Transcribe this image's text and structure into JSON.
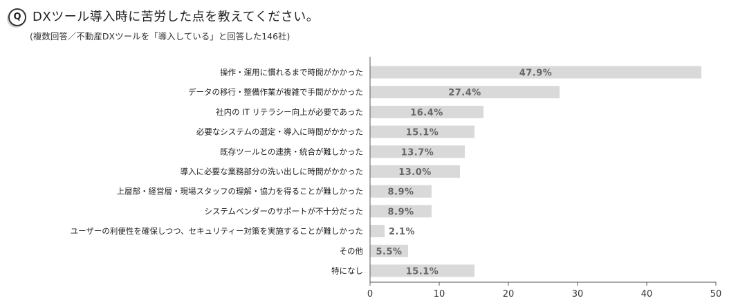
{
  "header": {
    "q_badge": "Q",
    "title": "DXツール導入時に苦労した点を教えてください。",
    "subtitle": "(複数回答／不動産DXツールを「導入している」と回答した146社)"
  },
  "chart_data": {
    "type": "bar",
    "orientation": "horizontal",
    "categories": [
      "操作・運用に慣れるまで時間がかかった",
      "データの移行・整備作業が複雑で手間がかかった",
      "社内の IT リテラシー向上が必要であった",
      "必要なシステムの選定・導入に時間がかかった",
      "既存ツールとの連携・統合が難しかった",
      "導入に必要な業務部分の洗い出しに時間がかかった",
      "上層部・経営層・現場スタッフの理解・協力を得ることが難しかった",
      "システムベンダーのサポートが不十分だった",
      "ユーザーの利便性を確保しつつ、セキュリティー対策を実施することが難しかった",
      "その他",
      "特になし"
    ],
    "values": [
      47.9,
      27.4,
      16.4,
      15.1,
      13.7,
      13.0,
      8.9,
      8.9,
      2.1,
      5.5,
      15.1
    ],
    "value_labels": [
      "47.9%",
      "27.4%",
      "16.4%",
      "15.1%",
      "13.7%",
      "13.0%",
      "8.9%",
      "8.9%",
      "2.1%",
      "5.5%",
      "15.1%"
    ],
    "xlim": [
      0,
      50
    ],
    "xticks": [
      "0",
      "10",
      "20",
      "30",
      "40",
      "50"
    ],
    "grid": false,
    "colors": {
      "bar": "#d9d9d9",
      "axis": "#555555",
      "value_text": "#666666"
    }
  }
}
